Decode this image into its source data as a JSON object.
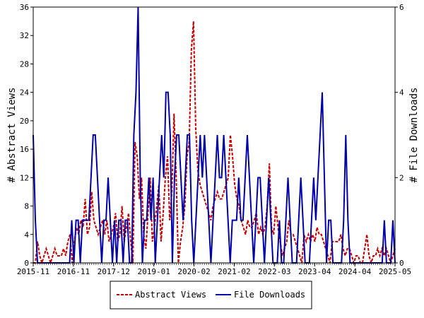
{
  "chart_data": {
    "type": "line",
    "ylabel": "# Abstract Views",
    "y2label": "# File Downloads",
    "ylim": [
      0,
      36
    ],
    "y2lim": [
      0,
      6
    ],
    "yticks": [
      "0",
      "4",
      "8",
      "12",
      "16",
      "20",
      "24",
      "28",
      "32",
      "36"
    ],
    "y2ticks": [
      "0",
      "2",
      "4",
      "6"
    ],
    "xticks": [
      "2015-11",
      "2016-11",
      "2017-12",
      "2019-01",
      "2020-02",
      "2021-02",
      "2022-03",
      "2023-04",
      "2024-04",
      "2025-05"
    ],
    "legend": "bottom",
    "series": [
      {
        "name": "Abstract Views",
        "axis": "left",
        "color": "#cc0000",
        "values": [
          0,
          0,
          3,
          1,
          0,
          1,
          2,
          1,
          0,
          1,
          2,
          1,
          1,
          1,
          2,
          1,
          3,
          4,
          0,
          3,
          5,
          4,
          6,
          5,
          9,
          4,
          5,
          10,
          6,
          5,
          4,
          5,
          6,
          4,
          6,
          3,
          4,
          5,
          7,
          3,
          4,
          8,
          3,
          5,
          7,
          3,
          0,
          17,
          15,
          9,
          12,
          4,
          2,
          7,
          12,
          3,
          5,
          8,
          11,
          3,
          7,
          12,
          15,
          6,
          10,
          21,
          12,
          0,
          3,
          5,
          8,
          15,
          17,
          30,
          34,
          19,
          13,
          11,
          10,
          9,
          8,
          7,
          6,
          8,
          9,
          10,
          9,
          9,
          10,
          11,
          12,
          18,
          15,
          11,
          9,
          8,
          6,
          5,
          4,
          6,
          5,
          5,
          6,
          7,
          4,
          5,
          4,
          5,
          8,
          14,
          5,
          4,
          8,
          5,
          3,
          1,
          2,
          3,
          6,
          4,
          4,
          3,
          2,
          1,
          0,
          4,
          3,
          4,
          3,
          4,
          3,
          5,
          4,
          4,
          3,
          2,
          1,
          0,
          3,
          3,
          3,
          3,
          4,
          2,
          1,
          2,
          2,
          1,
          0,
          1,
          1,
          0,
          0,
          2,
          4,
          1,
          0,
          1,
          1,
          2,
          1,
          2,
          1,
          2,
          1,
          0,
          1,
          2
        ]
      },
      {
        "name": "File Downloads",
        "axis": "right",
        "color": "#0000aa",
        "values": [
          3,
          1,
          0,
          0,
          0,
          0,
          0,
          0,
          0,
          0,
          0,
          0,
          0,
          0,
          0,
          0,
          0,
          0,
          1,
          0,
          1,
          1,
          0,
          1,
          1,
          1,
          1,
          2,
          3,
          3,
          2,
          1,
          0,
          1,
          1,
          2,
          1,
          0,
          1,
          0,
          1,
          1,
          0,
          1,
          1,
          0,
          0,
          3,
          4,
          6,
          2,
          0,
          1,
          1,
          2,
          1,
          2,
          0,
          1,
          2,
          3,
          2,
          4,
          4,
          3,
          0,
          2,
          3,
          3,
          2,
          1,
          2,
          3,
          3,
          1,
          0,
          1,
          2,
          3,
          2,
          3,
          2,
          1,
          0,
          1,
          2,
          3,
          2,
          2,
          3,
          2,
          1,
          0,
          1,
          1,
          1,
          2,
          1,
          1,
          2,
          3,
          2,
          1,
          0,
          1,
          2,
          2,
          1,
          0,
          1,
          2,
          1,
          0,
          0,
          0,
          1,
          0,
          0,
          1,
          2,
          1,
          0,
          0,
          0,
          1,
          2,
          1,
          0,
          0,
          0,
          1,
          2,
          1,
          2,
          3,
          4,
          2,
          0,
          1,
          1,
          0,
          0,
          0,
          0,
          0,
          1,
          3,
          1,
          0,
          0,
          0,
          0,
          0,
          0,
          0,
          0,
          0,
          0,
          0,
          0,
          0,
          0,
          0,
          0,
          1,
          0,
          0,
          0,
          1,
          0
        ]
      }
    ]
  }
}
